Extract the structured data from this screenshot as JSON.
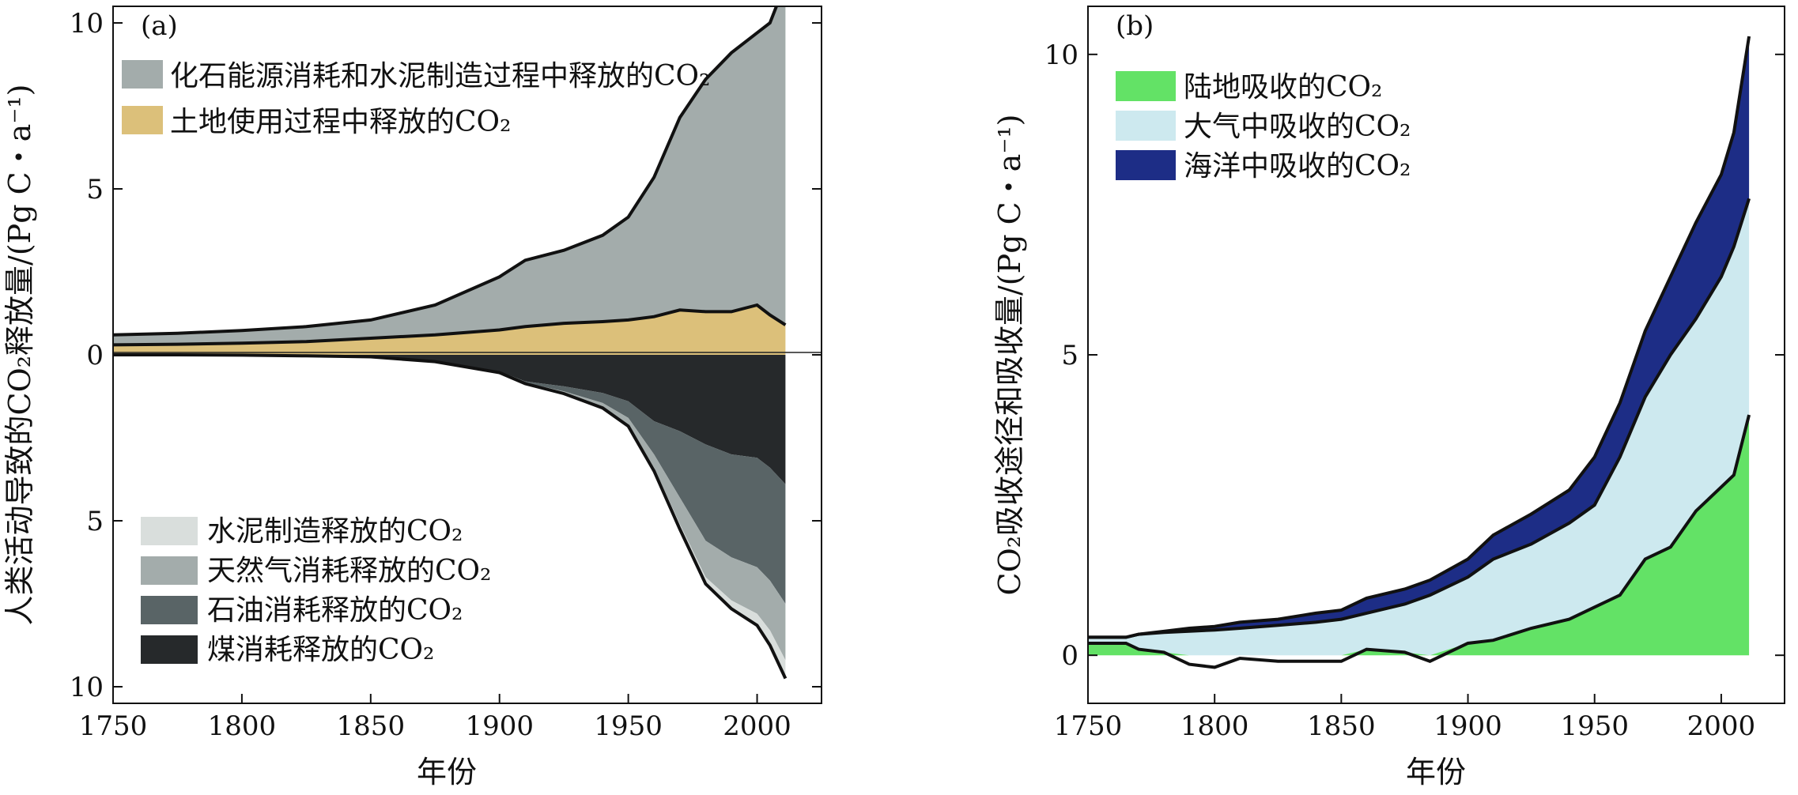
{
  "chart_data": [
    {
      "type": "area",
      "panel_label": "(a)",
      "xlabel": "年份",
      "ylabel": "人类活动导致的CO₂释放量/(Pg C・a⁻¹)",
      "xlim": [
        1750,
        2025
      ],
      "ylim": [
        -10.5,
        10.5
      ],
      "x_ticks": [
        1750,
        1800,
        1850,
        1900,
        1950,
        2000
      ],
      "y_ticks": [
        {
          "value": 10,
          "label": "10"
        },
        {
          "value": 5,
          "label": "5"
        },
        {
          "value": 0,
          "label": "0"
        },
        {
          "value": -5,
          "label": "5"
        },
        {
          "value": -10,
          "label": "10"
        }
      ],
      "legend_top": [
        {
          "label": "化石能源消耗和水泥制造过程中释放的CO₂",
          "color": "#a3acab"
        },
        {
          "label": "土地使用过程中释放的CO₂",
          "color": "#dcc07a"
        }
      ],
      "legend_bottom": [
        {
          "label": "水泥制造释放的CO₂",
          "color": "#d9dedc"
        },
        {
          "label": "天然气消耗释放的CO₂",
          "color": "#a3acab"
        },
        {
          "label": "石油消耗释放的CO₂",
          "color": "#596466"
        },
        {
          "label": "煤消耗释放的CO₂",
          "color": "#26292b"
        }
      ],
      "x": [
        1750,
        1775,
        1800,
        1825,
        1850,
        1875,
        1900,
        1910,
        1925,
        1940,
        1950,
        1960,
        1970,
        1980,
        1990,
        2000,
        2005,
        2011
      ],
      "series": [
        {
          "key": "land_use",
          "values": [
            0.3,
            0.32,
            0.35,
            0.4,
            0.5,
            0.6,
            0.75,
            0.85,
            0.95,
            1.0,
            1.05,
            1.15,
            1.35,
            1.3,
            1.3,
            1.5,
            1.2,
            0.9
          ]
        },
        {
          "key": "fossil_cement_total",
          "values": [
            0.3,
            0.33,
            0.38,
            0.45,
            0.55,
            0.9,
            1.6,
            2.0,
            2.2,
            2.6,
            3.1,
            4.2,
            5.8,
            7.0,
            7.8,
            8.2,
            8.8,
            10.3
          ]
        },
        {
          "key": "coal",
          "values": [
            0.0,
            0.0,
            0.01,
            0.03,
            0.06,
            0.2,
            0.5,
            0.8,
            0.95,
            1.15,
            1.4,
            2.0,
            2.3,
            2.7,
            3.0,
            3.1,
            3.4,
            3.9
          ]
        },
        {
          "key": "oil",
          "values": [
            0,
            0,
            0,
            0,
            0,
            0.005,
            0.02,
            0.04,
            0.15,
            0.3,
            0.5,
            1.0,
            2.0,
            2.9,
            3.1,
            3.3,
            3.4,
            3.6
          ]
        },
        {
          "key": "gas",
          "values": [
            0,
            0,
            0,
            0,
            0,
            0,
            0.01,
            0.02,
            0.05,
            0.12,
            0.2,
            0.4,
            0.8,
            1.1,
            1.3,
            1.4,
            1.5,
            1.7
          ]
        },
        {
          "key": "cement",
          "values": [
            0,
            0,
            0,
            0,
            0,
            0,
            0.005,
            0.01,
            0.02,
            0.03,
            0.05,
            0.1,
            0.15,
            0.2,
            0.25,
            0.35,
            0.45,
            0.55
          ]
        }
      ]
    },
    {
      "type": "area",
      "panel_label": "(b)",
      "xlabel": "年份",
      "ylabel": "CO₂吸收途径和吸收量/(Pg C・a⁻¹)",
      "xlim": [
        1750,
        2025
      ],
      "ylim": [
        -0.8,
        10.8
      ],
      "x_ticks": [
        1750,
        1800,
        1850,
        1900,
        1950,
        2000
      ],
      "y_ticks": [
        0,
        5,
        10
      ],
      "legend": [
        {
          "label": "陆地吸收的CO₂",
          "color": "#63e266"
        },
        {
          "label": "大气中吸收的CO₂",
          "color": "#cde9ef"
        },
        {
          "label": "海洋中吸收的CO₂",
          "color": "#1d2d86"
        }
      ],
      "x": [
        1750,
        1765,
        1770,
        1780,
        1790,
        1800,
        1810,
        1825,
        1840,
        1850,
        1860,
        1875,
        1885,
        1900,
        1910,
        1925,
        1940,
        1950,
        1960,
        1970,
        1980,
        1990,
        2000,
        2005,
        2011
      ],
      "series": [
        {
          "key": "land",
          "values": [
            0.2,
            0.2,
            0.1,
            0.05,
            -0.15,
            -0.2,
            -0.05,
            -0.1,
            -0.1,
            -0.1,
            0.1,
            0.05,
            -0.1,
            0.2,
            0.25,
            0.45,
            0.6,
            0.8,
            1.0,
            1.6,
            1.8,
            2.4,
            2.8,
            3.0,
            4.0
          ]
        },
        {
          "key": "atmosphere_top",
          "values": [
            0.3,
            0.3,
            0.35,
            0.38,
            0.4,
            0.42,
            0.45,
            0.5,
            0.55,
            0.6,
            0.7,
            0.85,
            1.0,
            1.3,
            1.6,
            1.85,
            2.2,
            2.5,
            3.3,
            4.3,
            5.0,
            5.6,
            6.3,
            6.8,
            7.6
          ]
        },
        {
          "key": "ocean_top",
          "values": [
            0.3,
            0.3,
            0.35,
            0.4,
            0.45,
            0.48,
            0.55,
            0.6,
            0.7,
            0.75,
            0.95,
            1.1,
            1.25,
            1.6,
            2.0,
            2.35,
            2.75,
            3.3,
            4.2,
            5.4,
            6.3,
            7.2,
            8.0,
            8.7,
            10.3
          ]
        }
      ]
    }
  ]
}
